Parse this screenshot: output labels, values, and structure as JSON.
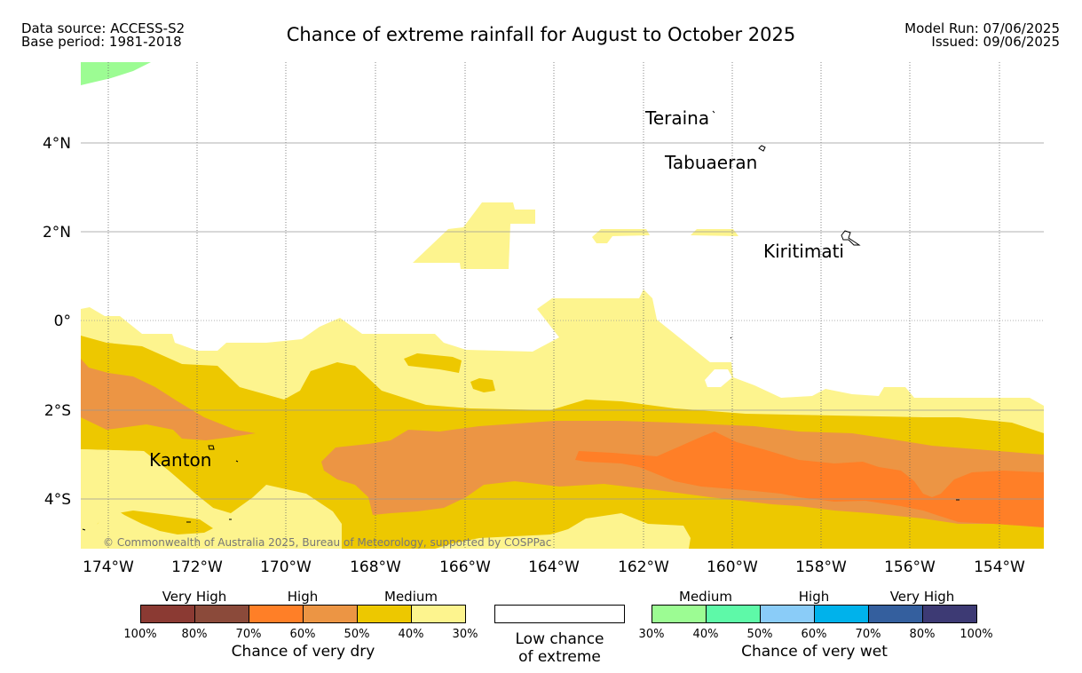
{
  "header": {
    "data_source": "Data source: ACCESS-S2",
    "base_period": "Base period: 1981-2018",
    "title": "Chance of extreme rainfall for August to October 2025",
    "model_run": "Model Run: 07/06/2025",
    "issued": "Issued: 09/06/2025"
  },
  "map": {
    "lat_labels": [
      "4°N",
      "2°N",
      "0°",
      "2°S",
      "4°S"
    ],
    "lon_labels": [
      "174°W",
      "172°W",
      "170°W",
      "168°W",
      "166°W",
      "164°W",
      "162°W",
      "160°W",
      "158°W",
      "156°W",
      "154°W"
    ],
    "places": [
      "Teraina",
      "Tabuaeran",
      "Kiritimati",
      "Kanton"
    ],
    "copyright": "© Commonwealth of Australia 2025, Bureau of Meteorology, supported by COSPPac"
  },
  "legend": {
    "dry": {
      "categories": [
        "Very High",
        "High",
        "Medium"
      ],
      "ticks": [
        "100%",
        "80%",
        "70%",
        "60%",
        "50%",
        "40%",
        "30%"
      ],
      "colors": [
        "#8b3a33",
        "#8b4a3a",
        "#ff7f27",
        "#ec9544",
        "#edc800",
        "#fdf48e"
      ],
      "title": "Chance of very dry"
    },
    "neutral": {
      "line1": "Low chance",
      "line2": "of extreme"
    },
    "wet": {
      "categories": [
        "Medium",
        "High",
        "Very High"
      ],
      "ticks": [
        "30%",
        "40%",
        "50%",
        "60%",
        "70%",
        "80%",
        "100%"
      ],
      "colors": [
        "#9cfc93",
        "#5ef9a8",
        "#8accf8",
        "#00b2eb",
        "#345f9e",
        "#3d3a74"
      ],
      "title": "Chance of very wet"
    }
  }
}
